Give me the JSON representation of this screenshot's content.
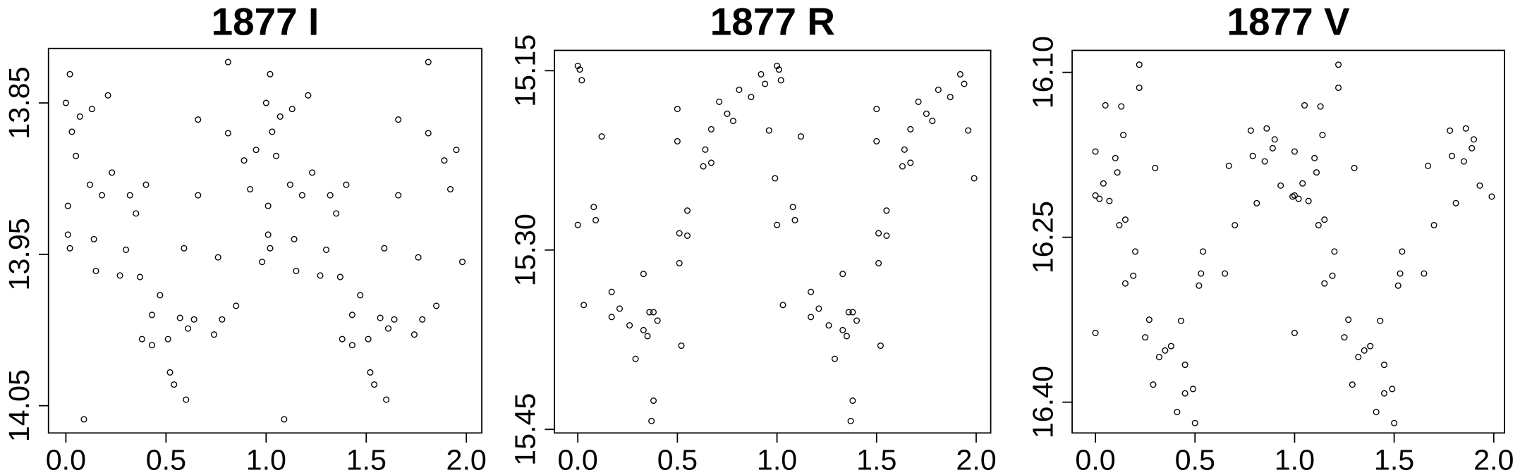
{
  "chart_data": [
    {
      "type": "scatter",
      "title": "1877 I",
      "x": [
        0,
        0.02,
        0.01,
        0.01,
        0.02,
        0.03,
        0.05,
        0.07,
        0.09,
        0.12,
        0.13,
        0.14,
        0.15,
        0.18,
        0.21,
        0.23,
        0.27,
        0.3,
        0.32,
        0.35,
        0.37,
        0.38,
        0.4,
        0.43,
        0.43,
        0.47,
        0.51,
        0.52,
        0.54,
        0.57,
        0.59,
        0.6,
        0.61,
        0.64,
        0.66,
        0.66,
        0.74,
        0.76,
        0.78,
        0.81,
        0.81,
        0.85,
        0.89,
        0.92,
        0.95,
        0.98,
        1,
        1.02,
        1.01,
        1.01,
        1.02,
        1.03,
        1.05,
        1.07,
        1.09,
        1.12,
        1.13,
        1.14,
        1.15,
        1.18,
        1.21,
        1.23,
        1.27,
        1.3,
        1.32,
        1.35,
        1.37,
        1.38,
        1.4,
        1.43,
        1.43,
        1.47,
        1.51,
        1.52,
        1.54,
        1.57,
        1.59,
        1.6,
        1.61,
        1.64,
        1.66,
        1.66,
        1.74,
        1.76,
        1.78,
        1.81,
        1.81,
        1.85,
        1.89,
        1.92,
        1.95,
        1.98
      ],
      "values": [
        13.85,
        13.831,
        13.918,
        13.937,
        13.946,
        13.869,
        13.885,
        13.859,
        14.059,
        13.904,
        13.854,
        13.94,
        13.961,
        13.911,
        13.845,
        13.896,
        13.964,
        13.947,
        13.911,
        13.923,
        13.965,
        14.006,
        13.904,
        13.99,
        14.01,
        13.977,
        14.006,
        14.028,
        14.036,
        13.992,
        13.946,
        14.046,
        13.999,
        13.993,
        13.861,
        13.911,
        14.003,
        13.952,
        13.993,
        13.823,
        13.87,
        13.984,
        13.888,
        13.907,
        13.881,
        13.955,
        13.85,
        13.831,
        13.918,
        13.937,
        13.946,
        13.869,
        13.885,
        13.859,
        14.059,
        13.904,
        13.854,
        13.94,
        13.961,
        13.911,
        13.845,
        13.896,
        13.964,
        13.947,
        13.911,
        13.923,
        13.965,
        14.006,
        13.904,
        13.99,
        14.01,
        13.977,
        14.006,
        14.028,
        14.036,
        13.992,
        13.946,
        14.046,
        13.999,
        13.993,
        13.861,
        13.911,
        14.003,
        13.952,
        13.993,
        13.823,
        13.87,
        13.984,
        13.888,
        13.907,
        13.881,
        13.955
      ],
      "color": "#000000",
      "xlim": [
        -0.087,
        2.077
      ],
      "ylim": [
        14.068,
        13.814
      ],
      "xticks": [
        {
          "value": 0,
          "label": "0.0"
        },
        0.5,
        {
          "value": 1,
          "label": "1.0"
        },
        1.5,
        {
          "value": 2,
          "label": "2.0"
        }
      ],
      "yticks": [
        13.85,
        13.95,
        14.05
      ]
    },
    {
      "type": "scatter",
      "title": "1877 R",
      "x": [
        0,
        0.01,
        0.02,
        0,
        0.03,
        0.08,
        0.09,
        0.12,
        0.17,
        0.17,
        0.21,
        0.26,
        0.29,
        0.33,
        0.33,
        0.35,
        0.36,
        0.38,
        0.38,
        0.37,
        0.4,
        0.51,
        0.51,
        0.52,
        0.5,
        0.5,
        0.55,
        0.55,
        0.63,
        0.64,
        0.67,
        0.67,
        0.71,
        0.75,
        0.78,
        0.81,
        0.87,
        0.92,
        0.94,
        0.96,
        0.99,
        1,
        1.01,
        1.02,
        1,
        1.03,
        1.08,
        1.09,
        1.12,
        1.17,
        1.17,
        1.21,
        1.26,
        1.29,
        1.33,
        1.33,
        1.35,
        1.36,
        1.38,
        1.38,
        1.37,
        1.4,
        1.51,
        1.51,
        1.52,
        1.5,
        1.5,
        1.55,
        1.55,
        1.63,
        1.64,
        1.67,
        1.67,
        1.71,
        1.75,
        1.78,
        1.81,
        1.87,
        1.92,
        1.94,
        1.96,
        1.99
      ],
      "values": [
        15.146,
        15.149,
        15.158,
        15.279,
        15.346,
        15.264,
        15.275,
        15.205,
        15.335,
        15.356,
        15.349,
        15.363,
        15.391,
        15.32,
        15.367,
        15.372,
        15.352,
        15.352,
        15.426,
        15.443,
        15.359,
        15.286,
        15.311,
        15.38,
        15.209,
        15.182,
        15.288,
        15.267,
        15.23,
        15.216,
        15.199,
        15.227,
        15.176,
        15.186,
        15.192,
        15.166,
        15.172,
        15.153,
        15.161,
        15.2,
        15.24,
        15.146,
        15.149,
        15.158,
        15.279,
        15.346,
        15.264,
        15.275,
        15.205,
        15.335,
        15.356,
        15.349,
        15.363,
        15.391,
        15.32,
        15.367,
        15.372,
        15.352,
        15.352,
        15.426,
        15.443,
        15.359,
        15.286,
        15.311,
        15.38,
        15.209,
        15.182,
        15.288,
        15.267,
        15.23,
        15.216,
        15.199,
        15.227,
        15.176,
        15.186,
        15.192,
        15.166,
        15.172,
        15.153,
        15.161,
        15.2,
        15.24
      ],
      "color": "#000000",
      "xlim": [
        -0.117,
        2.073
      ],
      "ylim": [
        15.453,
        15.133
      ],
      "xticks": [
        {
          "value": 0,
          "label": "0.0"
        },
        0.5,
        {
          "value": 1,
          "label": "1.0"
        },
        1.5,
        {
          "value": 2,
          "label": "2.0"
        }
      ],
      "yticks": [
        15.15,
        {
          "value": 15.3,
          "label": "15.30"
        },
        15.45
      ]
    },
    {
      "type": "scatter",
      "title": "1877 V",
      "x": [
        0,
        0,
        0.02,
        0,
        0.04,
        0.05,
        0.07,
        0.1,
        0.11,
        0.12,
        0.13,
        0.14,
        0.15,
        0.15,
        0.19,
        0.2,
        0.22,
        0.22,
        0.25,
        0.27,
        0.29,
        0.3,
        0.32,
        0.35,
        0.38,
        0.41,
        0.43,
        0.45,
        0.45,
        0.49,
        0.5,
        0.52,
        0.53,
        0.54,
        0.65,
        0.67,
        0.7,
        0.78,
        0.79,
        0.81,
        0.85,
        0.86,
        0.89,
        0.9,
        0.93,
        0.99,
        1,
        1,
        1.02,
        1,
        1.04,
        1.05,
        1.07,
        1.1,
        1.11,
        1.12,
        1.13,
        1.14,
        1.15,
        1.15,
        1.19,
        1.2,
        1.22,
        1.22,
        1.25,
        1.27,
        1.29,
        1.3,
        1.32,
        1.35,
        1.38,
        1.41,
        1.43,
        1.45,
        1.45,
        1.49,
        1.5,
        1.52,
        1.53,
        1.54,
        1.65,
        1.67,
        1.7,
        1.78,
        1.79,
        1.81,
        1.85,
        1.86,
        1.89,
        1.9,
        1.93,
        1.99
      ],
      "values": [
        16.172,
        16.212,
        16.215,
        16.337,
        16.201,
        16.13,
        16.217,
        16.178,
        16.191,
        16.239,
        16.131,
        16.157,
        16.234,
        16.292,
        16.285,
        16.263,
        16.114,
        16.093,
        16.341,
        16.325,
        16.384,
        16.187,
        16.359,
        16.353,
        16.349,
        16.409,
        16.326,
        16.366,
        16.392,
        16.388,
        16.419,
        16.294,
        16.283,
        16.263,
        16.283,
        16.185,
        16.239,
        16.153,
        16.176,
        16.219,
        16.181,
        16.151,
        16.169,
        16.161,
        16.203,
        16.213,
        16.172,
        16.212,
        16.215,
        16.337,
        16.201,
        16.13,
        16.217,
        16.178,
        16.191,
        16.239,
        16.131,
        16.157,
        16.234,
        16.292,
        16.285,
        16.263,
        16.114,
        16.093,
        16.341,
        16.325,
        16.384,
        16.187,
        16.359,
        16.353,
        16.349,
        16.409,
        16.326,
        16.366,
        16.392,
        16.388,
        16.419,
        16.294,
        16.283,
        16.263,
        16.283,
        16.185,
        16.239,
        16.153,
        16.176,
        16.219,
        16.181,
        16.151,
        16.169,
        16.161,
        16.203,
        16.213
      ],
      "color": "#000000",
      "xlim": [
        -0.117,
        2.054
      ],
      "ylim": [
        16.428,
        16.08
      ],
      "xticks": [
        {
          "value": 0,
          "label": "0.0"
        },
        0.5,
        {
          "value": 1,
          "label": "1.0"
        },
        1.5,
        {
          "value": 2,
          "label": "2.0"
        }
      ],
      "yticks": [
        {
          "value": 16.1,
          "label": "16.10"
        },
        16.25,
        {
          "value": 16.4,
          "label": "16.40"
        }
      ]
    }
  ]
}
